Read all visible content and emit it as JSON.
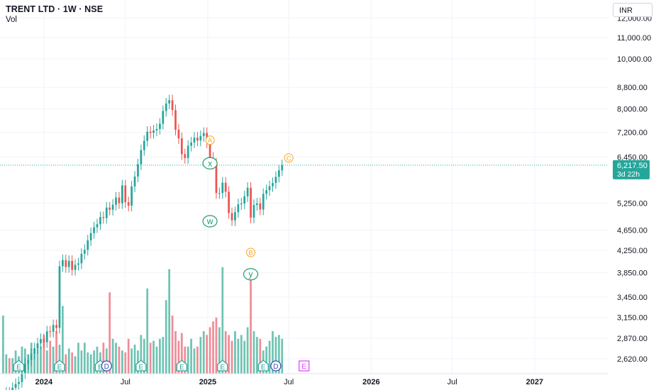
{
  "header": {
    "symbol_title": "TRENT LTD · 1W · NSE",
    "volume_label": "Vol",
    "currency": "INR"
  },
  "price_badge": {
    "price": "6,217.50",
    "countdown": "3d 22h",
    "color": "#26a69a"
  },
  "colors": {
    "up": "#26a69a",
    "down": "#ef5350",
    "volume_up": "#6fc3b2",
    "volume_down": "#f08c96",
    "grid": "#f0f3fa",
    "wave_orange": "#f5a623",
    "wave_green": "#1e9e6b",
    "dividend": "#3f51b5",
    "earnings_future": "#e040fb"
  },
  "chart_data": {
    "type": "candlestick",
    "title": "TRENT LTD",
    "interval": "1W",
    "exchange": "NSE",
    "y_scale": "log",
    "ylim": [
      2450,
      13000
    ],
    "y_ticks": [
      "12,000.00",
      "11,000.00",
      "10,000.00",
      "8,800.00",
      "8,000.00",
      "7,200.00",
      "6,450.00",
      "5,250.00",
      "4,650.00",
      "4,250.00",
      "3,850.00",
      "3,450.00",
      "3,150.00",
      "2,870.00",
      "2,620.00"
    ],
    "x_ticks": [
      "2024",
      "Jul",
      "2025",
      "Jul",
      "2026",
      "Jul",
      "2027"
    ],
    "x_tick_dates": [
      "2024-01-01",
      "2024-07-01",
      "2025-01-01",
      "2025-07-01",
      "2026-01-01",
      "2026-07-01",
      "2027-01-01"
    ],
    "x_range": [
      "2023-09-25",
      "2027-06-15"
    ],
    "first_bar_date": "2023-10-02",
    "closes": [
      2220,
      2250,
      2235,
      2300,
      2340,
      2360,
      2455,
      2560,
      2605,
      2680,
      2745,
      2805,
      2860,
      2820,
      2960,
      2955,
      3045,
      3005,
      3960,
      4070,
      3945,
      4055,
      3895,
      3985,
      4010,
      4185,
      4260,
      4445,
      4590,
      4710,
      4775,
      4930,
      4910,
      5145,
      5095,
      5210,
      5380,
      5245,
      5680,
      5270,
      5190,
      5655,
      5910,
      6240,
      6650,
      6930,
      7220,
      7180,
      7260,
      7310,
      7480,
      7920,
      8190,
      8310,
      7950,
      7285,
      7010,
      6530,
      6420,
      6780,
      6880,
      7030,
      6940,
      7080,
      7180,
      6880,
      6430,
      6260,
      5490,
      5490,
      5750,
      5520,
      5020,
      4860,
      5040,
      5220,
      5240,
      5410,
      5620,
      4920,
      5205,
      5240,
      5100,
      5470,
      5560,
      5660,
      5740,
      5900,
      6075,
      6217.5
    ],
    "opens": [
      2190,
      2220,
      2250,
      2235,
      2300,
      2340,
      2360,
      2455,
      2560,
      2605,
      2680,
      2745,
      2805,
      2860,
      2820,
      2960,
      2955,
      3045,
      3005,
      3960,
      4070,
      3945,
      4055,
      3895,
      3985,
      4010,
      4185,
      4260,
      4445,
      4590,
      4710,
      4775,
      4930,
      4910,
      5145,
      5095,
      5210,
      5380,
      5245,
      5680,
      5270,
      5190,
      5655,
      5910,
      6240,
      6650,
      6930,
      7220,
      7180,
      7260,
      7310,
      7480,
      7920,
      8190,
      8310,
      7950,
      7285,
      7010,
      6530,
      6420,
      6780,
      6880,
      7030,
      6940,
      7080,
      7180,
      6880,
      6430,
      6260,
      5490,
      5490,
      5750,
      5520,
      5020,
      4860,
      5040,
      5220,
      5240,
      5410,
      5620,
      4920,
      5205,
      5240,
      5100,
      5470,
      5560,
      5660,
      5740,
      5900,
      6075
    ],
    "volume_relative": [
      0.3,
      0.1,
      0.08,
      0.08,
      0.12,
      0.09,
      0.14,
      0.13,
      0.1,
      0.16,
      0.11,
      0.13,
      0.14,
      0.2,
      0.12,
      0.17,
      0.14,
      0.22,
      0.15,
      0.35,
      0.1,
      0.13,
      0.11,
      0.09,
      0.16,
      0.12,
      0.16,
      0.11,
      0.1,
      0.12,
      0.14,
      0.11,
      0.16,
      0.13,
      0.42,
      0.18,
      0.16,
      0.14,
      0.12,
      0.11,
      0.18,
      0.13,
      0.15,
      0.12,
      0.2,
      0.18,
      0.44,
      0.16,
      0.17,
      0.14,
      0.18,
      0.19,
      0.38,
      0.54,
      0.3,
      0.22,
      0.17,
      0.21,
      0.14,
      0.14,
      0.18,
      0.13,
      0.14,
      0.19,
      0.22,
      0.2,
      0.24,
      0.27,
      0.29,
      0.24,
      0.55,
      0.22,
      0.2,
      0.17,
      0.22,
      0.18,
      0.2,
      0.17,
      0.24,
      0.54,
      0.22,
      0.19,
      0.18,
      0.12,
      0.14,
      0.17,
      0.22,
      0.19,
      0.2,
      0.18
    ]
  },
  "wave_labels": [
    {
      "text": "A",
      "date": "2025-01-06",
      "price": 6950,
      "style": "small-orange"
    },
    {
      "text": "x",
      "date": "2025-01-06",
      "price": 6270,
      "style": "large-green"
    },
    {
      "text": "w",
      "date": "2025-01-06",
      "price": 4840,
      "style": "large-green"
    },
    {
      "text": "B",
      "date": "2025-04-07",
      "price": 4210,
      "style": "small-orange"
    },
    {
      "text": "y",
      "date": "2025-04-07",
      "price": 3820,
      "style": "large-green"
    },
    {
      "text": "C",
      "date": "2025-07-01",
      "price": 6420,
      "style": "small-orange"
    }
  ],
  "event_markers": [
    {
      "text": "E",
      "date": "2023-11-06",
      "kind": "earnings"
    },
    {
      "text": "E",
      "date": "2024-02-05",
      "kind": "earnings"
    },
    {
      "text": "E",
      "date": "2024-05-06",
      "kind": "earnings"
    },
    {
      "text": "D",
      "date": "2024-05-20",
      "kind": "dividend"
    },
    {
      "text": "E",
      "date": "2024-08-05",
      "kind": "earnings"
    },
    {
      "text": "E",
      "date": "2024-11-04",
      "kind": "earnings"
    },
    {
      "text": "E",
      "date": "2025-02-03",
      "kind": "earnings"
    },
    {
      "text": "E",
      "date": "2025-05-05",
      "kind": "earnings"
    },
    {
      "text": "D",
      "date": "2025-06-02",
      "kind": "dividend"
    },
    {
      "text": "E",
      "date": "2025-08-04",
      "kind": "earnings-future"
    }
  ]
}
